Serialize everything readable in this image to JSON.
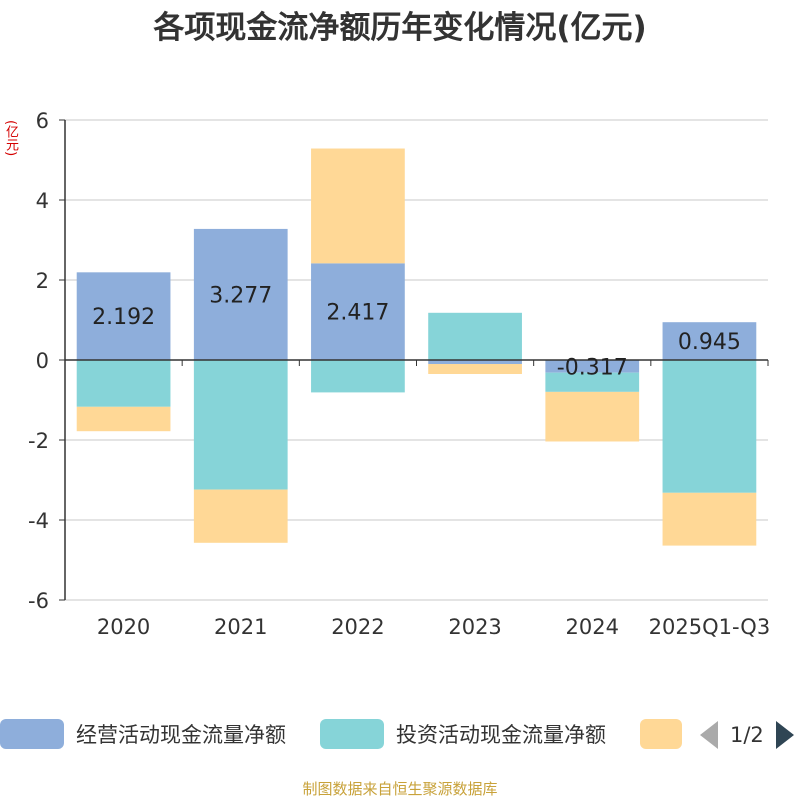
{
  "chart_data": {
    "type": "bar",
    "stacked": true,
    "title": "各项现金流净额历年变化情况(亿元)",
    "ylabel": "(亿元)",
    "categories": [
      "2020",
      "2021",
      "2022",
      "2023",
      "2024",
      "2025Q1-Q3"
    ],
    "ylim": [
      -6,
      6
    ],
    "yticks": [
      6,
      4,
      2,
      0,
      -2,
      -4,
      -6
    ],
    "grid": true,
    "series": [
      {
        "name": "经营活动现金流量净额",
        "color": "#8eaedb",
        "values": [
          2.192,
          3.277,
          2.417,
          -0.1,
          -0.317,
          0.945
        ],
        "labels": [
          "2.192",
          "3.277",
          "2.417",
          "",
          "-0.317",
          "0.945"
        ]
      },
      {
        "name": "投资活动现金流量净额",
        "color": "#86d4d8",
        "values": [
          -1.17,
          -3.24,
          -0.81,
          1.18,
          -0.48,
          -3.32
        ],
        "labels": [
          "",
          "",
          "",
          "",
          "",
          ""
        ]
      },
      {
        "name": "",
        "color": "#ffd896",
        "values": [
          -0.61,
          -1.33,
          2.87,
          -0.25,
          -1.24,
          -1.32
        ],
        "labels": [
          "",
          "",
          "",
          "",
          "",
          ""
        ]
      }
    ]
  },
  "legend": {
    "page_indicator": "1/2"
  },
  "source": "制图数据来自恒生聚源数据库"
}
